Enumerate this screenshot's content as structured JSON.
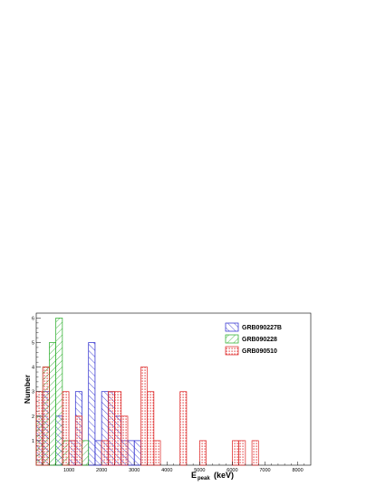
{
  "chart_data": {
    "type": "bar",
    "xlabel": "E",
    "xlabel_sub": "peak",
    "xlabel_unit": "(keV)",
    "ylabel": "Number",
    "xlim": [
      0,
      8400
    ],
    "ylim": [
      0,
      6.2
    ],
    "x_ticks": [
      1000,
      2000,
      3000,
      4000,
      5000,
      6000,
      7000,
      8000
    ],
    "x_tick_labels": [
      "1000",
      "2000",
      "3000",
      "4000",
      "5000",
      "6000",
      "7000",
      "8000"
    ],
    "y_ticks": [
      1,
      2,
      3,
      4,
      5,
      6
    ],
    "y_tick_labels": [
      "1",
      "2",
      "3",
      "4",
      "5",
      "6"
    ],
    "grid": false,
    "legend_position": "top-right",
    "bin_width": 200,
    "series": [
      {
        "name": "GRB090227B",
        "color": "#2222cc",
        "pattern": "diagonal",
        "bins": [
          {
            "x0": 0,
            "x1": 200,
            "y": 2
          },
          {
            "x0": 200,
            "x1": 400,
            "y": 3
          },
          {
            "x0": 600,
            "x1": 800,
            "y": 2
          },
          {
            "x0": 1000,
            "x1": 1200,
            "y": 1
          },
          {
            "x0": 1200,
            "x1": 1400,
            "y": 3
          },
          {
            "x0": 1600,
            "x1": 1800,
            "y": 5
          },
          {
            "x0": 1800,
            "x1": 2000,
            "y": 1
          },
          {
            "x0": 2000,
            "x1": 2200,
            "y": 3
          },
          {
            "x0": 2200,
            "x1": 2400,
            "y": 3
          },
          {
            "x0": 2400,
            "x1": 2600,
            "y": 2
          },
          {
            "x0": 2600,
            "x1": 2800,
            "y": 1
          },
          {
            "x0": 2800,
            "x1": 3000,
            "y": 1
          },
          {
            "x0": 3000,
            "x1": 3200,
            "y": 1
          }
        ]
      },
      {
        "name": "GRB090228",
        "color": "#22aa22",
        "pattern": "diagonal-reverse",
        "bins": [
          {
            "x0": 0,
            "x1": 200,
            "y": 2
          },
          {
            "x0": 200,
            "x1": 400,
            "y": 4
          },
          {
            "x0": 400,
            "x1": 600,
            "y": 5
          },
          {
            "x0": 600,
            "x1": 800,
            "y": 6
          },
          {
            "x0": 800,
            "x1": 1000,
            "y": 1
          },
          {
            "x0": 1400,
            "x1": 1600,
            "y": 1
          }
        ]
      },
      {
        "name": "GRB090510",
        "color": "#dd2222",
        "pattern": "dots",
        "bins": [
          {
            "x0": 0,
            "x1": 200,
            "y": 3
          },
          {
            "x0": 200,
            "x1": 400,
            "y": 4
          },
          {
            "x0": 800,
            "x1": 1000,
            "y": 3
          },
          {
            "x0": 1000,
            "x1": 1200,
            "y": 1
          },
          {
            "x0": 1200,
            "x1": 1400,
            "y": 2
          },
          {
            "x0": 2000,
            "x1": 2200,
            "y": 1
          },
          {
            "x0": 2200,
            "x1": 2400,
            "y": 3
          },
          {
            "x0": 2400,
            "x1": 2600,
            "y": 3
          },
          {
            "x0": 2600,
            "x1": 2800,
            "y": 2
          },
          {
            "x0": 3200,
            "x1": 3400,
            "y": 4
          },
          {
            "x0": 3400,
            "x1": 3600,
            "y": 3
          },
          {
            "x0": 3600,
            "x1": 3800,
            "y": 1
          },
          {
            "x0": 4400,
            "x1": 4600,
            "y": 3
          },
          {
            "x0": 5000,
            "x1": 5200,
            "y": 1
          },
          {
            "x0": 6000,
            "x1": 6200,
            "y": 1
          },
          {
            "x0": 6200,
            "x1": 6400,
            "y": 1
          },
          {
            "x0": 6600,
            "x1": 6800,
            "y": 1
          }
        ]
      }
    ]
  }
}
